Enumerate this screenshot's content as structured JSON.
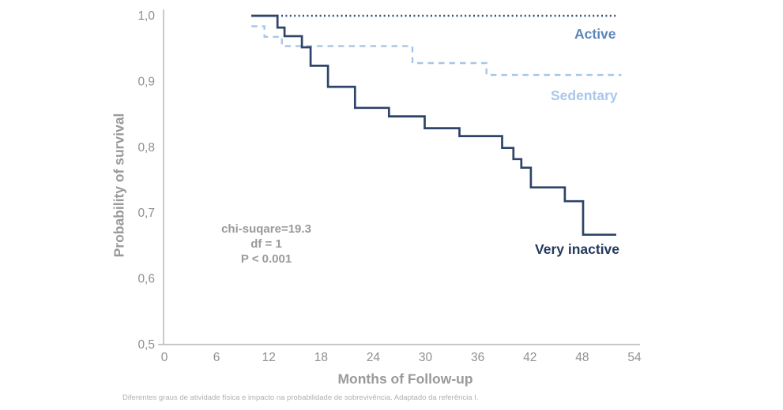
{
  "figure": {
    "caption": "Diferentes graus de atividade física e impacto na probabilidade de sobrevivência. Adaptado da referência I."
  },
  "chart_data": {
    "type": "line",
    "subtype": "kaplan-meier-step",
    "title": "",
    "xlabel": "Months of Follow-up",
    "ylabel": "Probability of survival",
    "xlim": [
      0,
      54
    ],
    "ylim": [
      0.5,
      1.0
    ],
    "grid": false,
    "legend_position": "labels-on-chart",
    "x_ticks": [
      {
        "value": 0,
        "label": "0"
      },
      {
        "value": 6,
        "label": "6"
      },
      {
        "value": 12,
        "label": "12"
      },
      {
        "value": 18,
        "label": "18"
      },
      {
        "value": 24,
        "label": "24"
      },
      {
        "value": 30,
        "label": "30"
      },
      {
        "value": 36,
        "label": "36"
      },
      {
        "value": 42,
        "label": "42"
      },
      {
        "value": 48,
        "label": "48"
      },
      {
        "value": 54,
        "label": "54"
      }
    ],
    "y_ticks": [
      {
        "value": 1.0,
        "label": "1,0"
      },
      {
        "value": 0.9,
        "label": "0,9"
      },
      {
        "value": 0.8,
        "label": "0,8"
      },
      {
        "value": 0.7,
        "label": "0,7"
      },
      {
        "value": 0.6,
        "label": "0,6"
      },
      {
        "value": 0.5,
        "label": "0,5"
      }
    ],
    "colors": {
      "axis": "#b5b5b5",
      "tick_text": "#8f8f8f"
    },
    "annotation": {
      "lines": [
        "chi-suqare=19.3",
        "df = 1",
        "P < 0.001"
      ]
    },
    "series": [
      {
        "name": "Active",
        "line_color": "#31507e",
        "label_color": "#5b86bb",
        "line_style": "dotted",
        "steps": [
          [
            10,
            1.0
          ]
        ],
        "end_x": 52
      },
      {
        "name": "Sedentary",
        "line_color": "#a6c6e8",
        "label_color": "#a9c7e9",
        "line_style": "dashed",
        "steps": [
          [
            10,
            0.984
          ],
          [
            11.5,
            0.968
          ],
          [
            13.5,
            0.954
          ],
          [
            28.5,
            0.928
          ],
          [
            37,
            0.91
          ]
        ],
        "end_x": 52.5
      },
      {
        "name": "Very inactive",
        "line_color": "#2e4468",
        "label_color": "#24395e",
        "line_style": "solid",
        "steps": [
          [
            10,
            1.0
          ],
          [
            13,
            0.982
          ],
          [
            13.8,
            0.969
          ],
          [
            15.8,
            0.952
          ],
          [
            16.8,
            0.924
          ],
          [
            18.8,
            0.892
          ],
          [
            21.9,
            0.86
          ],
          [
            25.8,
            0.847
          ],
          [
            29.9,
            0.829
          ],
          [
            33.9,
            0.817
          ],
          [
            38.8,
            0.799
          ],
          [
            40.1,
            0.782
          ],
          [
            41.0,
            0.769
          ],
          [
            42.1,
            0.739
          ],
          [
            46.0,
            0.718
          ],
          [
            48.1,
            0.667
          ]
        ],
        "end_x": 51.9
      }
    ]
  }
}
